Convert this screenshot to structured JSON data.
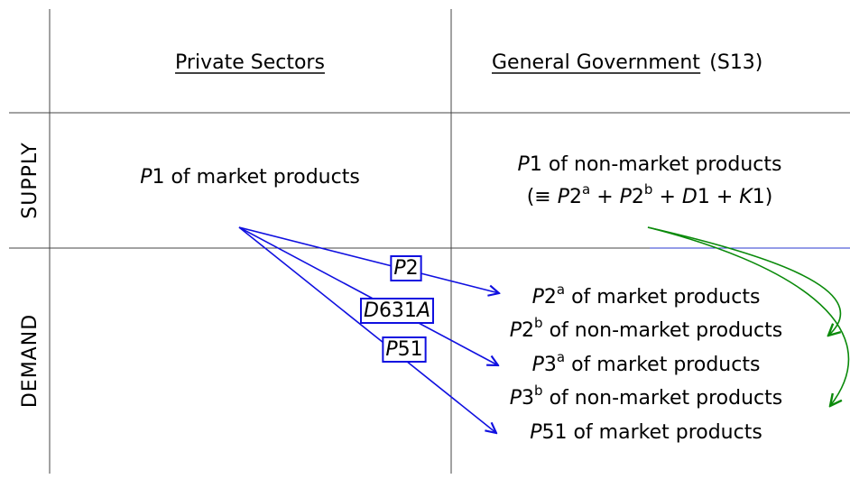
{
  "header": {
    "left": "Private Sectors",
    "right": "General Government",
    "right_code": "(S13)"
  },
  "rows": [
    "SUPPLY",
    "DEMAND"
  ],
  "supply": {
    "left": [
      {
        "i": "P"
      },
      {
        "n": "1"
      },
      {
        "w": "of market products"
      }
    ],
    "right": [
      {
        "i": "P"
      },
      {
        "n": "1"
      },
      {
        "w": "of non-market products"
      }
    ],
    "formula": [
      {
        "n": "(≡"
      },
      {
        "wi": "P"
      },
      {
        "n": "2"
      },
      {
        "s": "a"
      },
      {
        "w": "+"
      },
      {
        "wi": "P"
      },
      {
        "n": "2"
      },
      {
        "s": "b"
      },
      {
        "w": "+"
      },
      {
        "wi": "D"
      },
      {
        "n": "1"
      },
      {
        "w": "+"
      },
      {
        "wi": "K"
      },
      {
        "n": "1"
      },
      {
        "n": ")"
      }
    ]
  },
  "arrow_labels": [
    [
      {
        "i": "P"
      },
      {
        "n": "2"
      }
    ],
    [
      {
        "i": "D"
      },
      {
        "n": "631"
      },
      {
        "i": "A"
      }
    ],
    [
      {
        "i": "P"
      },
      {
        "n": "51"
      }
    ]
  ],
  "demand": [
    [
      {
        "i": "P"
      },
      {
        "n": "2"
      },
      {
        "s": "a"
      },
      {
        "w": "of market products"
      }
    ],
    [
      {
        "i": "P"
      },
      {
        "n": "2"
      },
      {
        "s": "b"
      },
      {
        "w": "of non-market products"
      }
    ],
    [
      {
        "i": "P"
      },
      {
        "n": "3"
      },
      {
        "s": "a"
      },
      {
        "w": "of market products"
      }
    ],
    [
      {
        "i": "P"
      },
      {
        "n": "3"
      },
      {
        "s": "b"
      },
      {
        "w": "of non-market products"
      }
    ],
    [
      {
        "i": "P"
      },
      {
        "n": "51"
      },
      {
        "w": "of market products"
      }
    ]
  ]
}
